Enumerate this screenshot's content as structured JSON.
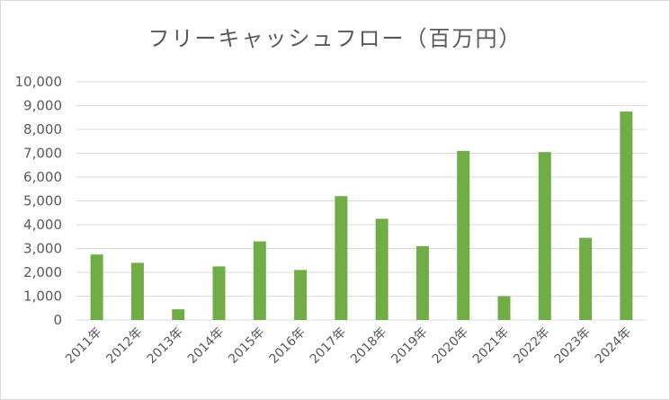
{
  "chart_data": {
    "type": "bar",
    "title": "フリーキャッシュフロー（百万円）",
    "xlabel": "",
    "ylabel": "",
    "categories": [
      "2011年",
      "2012年",
      "2013年",
      "2014年",
      "2015年",
      "2016年",
      "2017年",
      "2018年",
      "2019年",
      "2020年",
      "2021年",
      "2022年",
      "2023年",
      "2024年"
    ],
    "values": [
      2750,
      2400,
      450,
      2250,
      3300,
      2100,
      5200,
      4250,
      3100,
      7100,
      1000,
      7050,
      3450,
      8750
    ],
    "ylim": [
      0,
      10000
    ],
    "yticks": [
      "0",
      "1,000",
      "2,000",
      "3,000",
      "4,000",
      "5,000",
      "6,000",
      "7,000",
      "8,000",
      "9,000",
      "10,000"
    ],
    "grid": true,
    "legend": "none",
    "bar_color": "#70ad47",
    "grid_color": "#d9d9d9"
  }
}
